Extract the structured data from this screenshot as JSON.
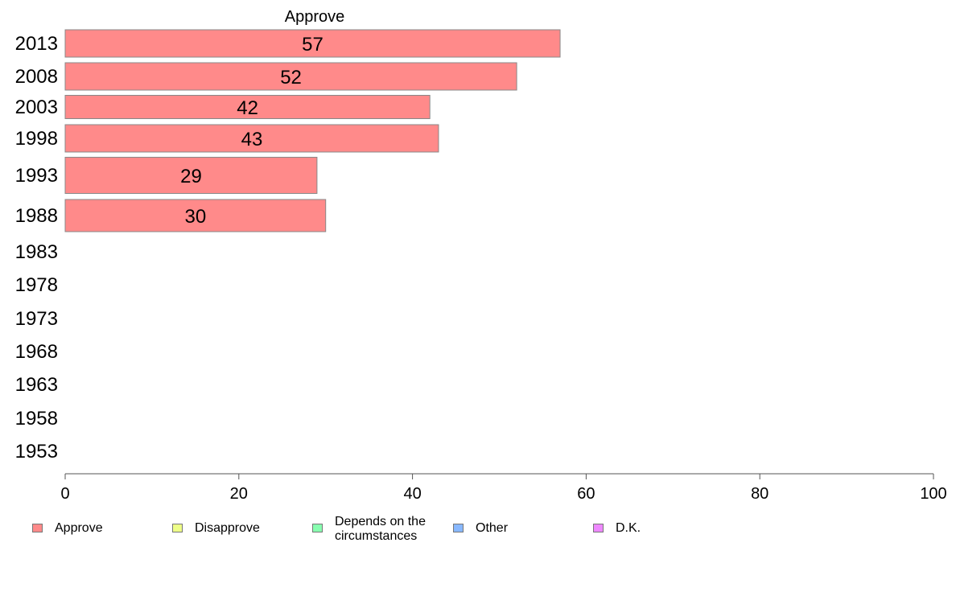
{
  "chart_data": {
    "type": "bar",
    "orientation": "horizontal",
    "title": "Approve",
    "categories": [
      "2013",
      "2008",
      "2003",
      "1998",
      "1993",
      "1988",
      "1983",
      "1978",
      "1973",
      "1968",
      "1963",
      "1958",
      "1953"
    ],
    "series": [
      {
        "name": "Approve",
        "values": [
          57,
          52,
          42,
          43,
          29,
          30,
          null,
          null,
          null,
          null,
          null,
          null,
          null
        ],
        "color": "#ff8a8a"
      }
    ],
    "data_labels": [
      "57",
      "52",
      "42",
      "43",
      "29",
      "30"
    ],
    "x_ticks": [
      "0",
      "20",
      "40",
      "60",
      "80",
      "100"
    ],
    "xlim": [
      0,
      100
    ],
    "xlabel": "",
    "ylabel": "",
    "grid": false,
    "legend_position": "bottom"
  },
  "legend": [
    {
      "label": "Approve",
      "color": "#ff8a8a"
    },
    {
      "label": "Disapprove",
      "color": "#eeff88"
    },
    {
      "label": "Depends on the\ncircumstances",
      "color": "#88ffb0"
    },
    {
      "label": "Other",
      "color": "#88b8ff"
    },
    {
      "label": "D.K.",
      "color": "#ee88ff"
    }
  ]
}
